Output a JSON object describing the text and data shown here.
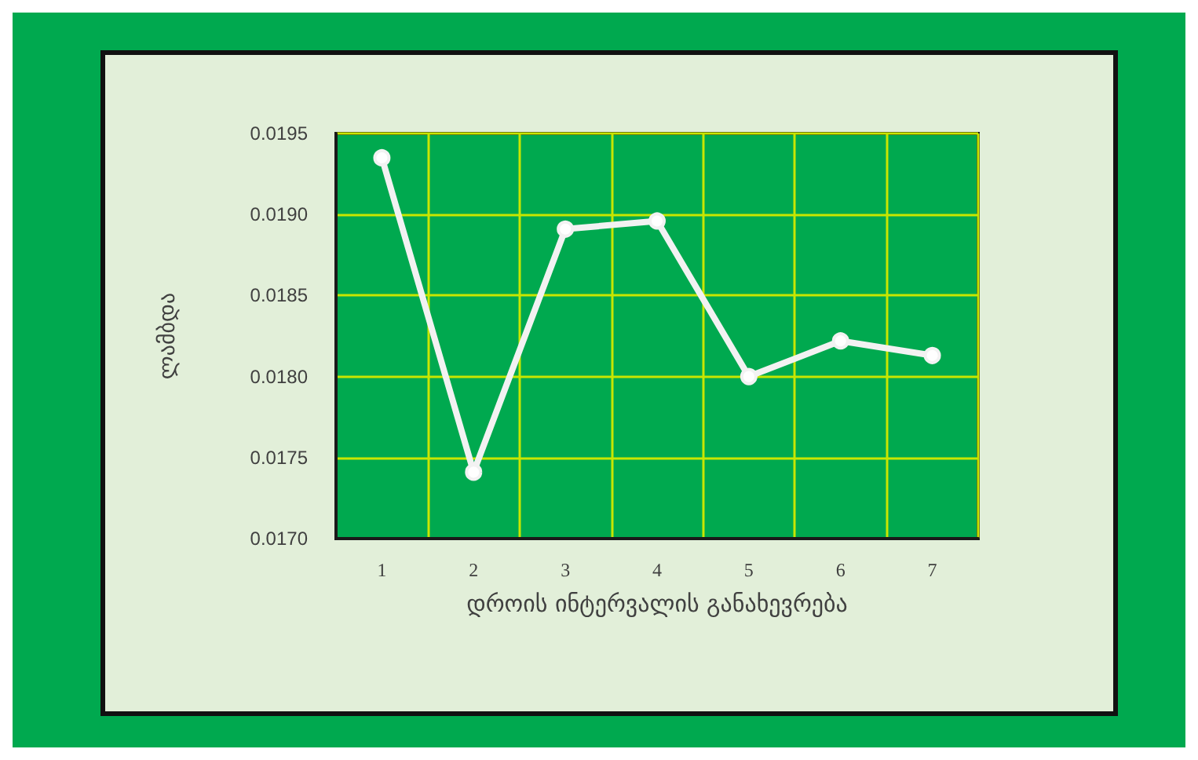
{
  "chart_data": {
    "type": "line",
    "xlabel": "დროის ინტერვალის განახევრება",
    "ylabel": "ლამბდა",
    "categories": [
      "1",
      "2",
      "3",
      "4",
      "5",
      "6",
      "7"
    ],
    "series": [
      {
        "color": "#f2f2f2",
        "values": [
          0.01935,
          0.01741,
          0.01891,
          0.01896,
          0.018,
          0.01822,
          0.01813
        ]
      }
    ],
    "ylim": [
      0.017,
      0.0195
    ],
    "yticks": [
      {
        "value": 0.017,
        "label": "0.0170"
      },
      {
        "value": 0.0175,
        "label": "0.0175"
      },
      {
        "value": 0.018,
        "label": "0.0180"
      },
      {
        "value": 0.0185,
        "label": "0.0185"
      },
      {
        "value": 0.019,
        "label": "0.0190"
      },
      {
        "value": 0.0195,
        "label": "0.0195"
      }
    ],
    "grid": true,
    "marker": "circle",
    "line_style": "solid"
  }
}
